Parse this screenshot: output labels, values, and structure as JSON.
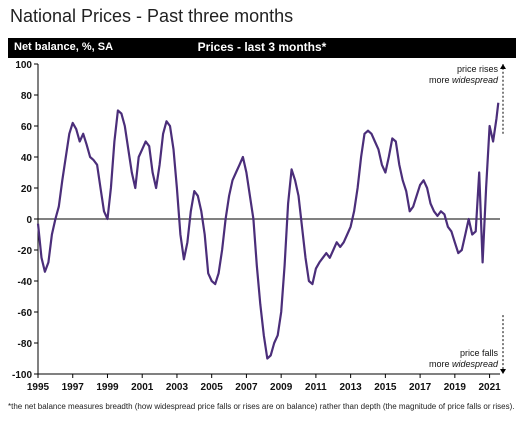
{
  "page": {
    "title": "National Prices - Past three months",
    "footnote": "*the net balance measures breadth (how widespread price falls or rises are on balance)  rather than depth (the magnitude of price falls or rises)."
  },
  "chart_data": {
    "type": "line",
    "title": "Prices - last 3 months*",
    "ylabel": "Net balance, %, SA",
    "ylim": [
      -100,
      100
    ],
    "xlim": [
      1995,
      2021.6
    ],
    "y_ticks": [
      100,
      80,
      60,
      40,
      20,
      0,
      -20,
      -40,
      -60,
      -80,
      -100
    ],
    "x_ticks": [
      1995,
      1997,
      1999,
      2001,
      2003,
      2005,
      2007,
      2009,
      2011,
      2013,
      2015,
      2017,
      2019,
      2021
    ],
    "grid": false,
    "colors": {
      "series": "#4b2e7a",
      "header": "#000000"
    },
    "annotations": {
      "top": [
        "price rises",
        "more widespread"
      ],
      "bottom": [
        "price falls",
        "more widespread"
      ]
    },
    "series": [
      {
        "values": [
          [
            1995.0,
            -3
          ],
          [
            1995.2,
            -25
          ],
          [
            1995.4,
            -34
          ],
          [
            1995.6,
            -28
          ],
          [
            1995.8,
            -10
          ],
          [
            1996.0,
            0
          ],
          [
            1996.2,
            8
          ],
          [
            1996.4,
            25
          ],
          [
            1996.6,
            40
          ],
          [
            1996.8,
            55
          ],
          [
            1997.0,
            62
          ],
          [
            1997.2,
            58
          ],
          [
            1997.4,
            50
          ],
          [
            1997.6,
            55
          ],
          [
            1997.8,
            48
          ],
          [
            1998.0,
            40
          ],
          [
            1998.2,
            38
          ],
          [
            1998.4,
            35
          ],
          [
            1998.6,
            20
          ],
          [
            1998.8,
            5
          ],
          [
            1999.0,
            0
          ],
          [
            1999.2,
            20
          ],
          [
            1999.4,
            50
          ],
          [
            1999.6,
            70
          ],
          [
            1999.8,
            68
          ],
          [
            2000.0,
            60
          ],
          [
            2000.2,
            45
          ],
          [
            2000.4,
            30
          ],
          [
            2000.6,
            20
          ],
          [
            2000.8,
            40
          ],
          [
            2001.0,
            45
          ],
          [
            2001.2,
            50
          ],
          [
            2001.4,
            47
          ],
          [
            2001.6,
            30
          ],
          [
            2001.8,
            20
          ],
          [
            2002.0,
            35
          ],
          [
            2002.2,
            55
          ],
          [
            2002.4,
            63
          ],
          [
            2002.6,
            60
          ],
          [
            2002.8,
            45
          ],
          [
            2003.0,
            20
          ],
          [
            2003.2,
            -10
          ],
          [
            2003.4,
            -26
          ],
          [
            2003.6,
            -15
          ],
          [
            2003.8,
            5
          ],
          [
            2004.0,
            18
          ],
          [
            2004.2,
            15
          ],
          [
            2004.4,
            5
          ],
          [
            2004.6,
            -10
          ],
          [
            2004.8,
            -35
          ],
          [
            2005.0,
            -40
          ],
          [
            2005.2,
            -42
          ],
          [
            2005.4,
            -35
          ],
          [
            2005.6,
            -20
          ],
          [
            2005.8,
            0
          ],
          [
            2006.0,
            15
          ],
          [
            2006.2,
            25
          ],
          [
            2006.4,
            30
          ],
          [
            2006.6,
            35
          ],
          [
            2006.8,
            40
          ],
          [
            2007.0,
            30
          ],
          [
            2007.2,
            15
          ],
          [
            2007.4,
            0
          ],
          [
            2007.6,
            -30
          ],
          [
            2007.8,
            -55
          ],
          [
            2008.0,
            -75
          ],
          [
            2008.2,
            -90
          ],
          [
            2008.4,
            -88
          ],
          [
            2008.6,
            -80
          ],
          [
            2008.8,
            -75
          ],
          [
            2009.0,
            -60
          ],
          [
            2009.2,
            -30
          ],
          [
            2009.4,
            10
          ],
          [
            2009.6,
            32
          ],
          [
            2009.8,
            25
          ],
          [
            2010.0,
            15
          ],
          [
            2010.2,
            -5
          ],
          [
            2010.4,
            -25
          ],
          [
            2010.6,
            -40
          ],
          [
            2010.8,
            -42
          ],
          [
            2011.0,
            -32
          ],
          [
            2011.2,
            -28
          ],
          [
            2011.4,
            -25
          ],
          [
            2011.6,
            -22
          ],
          [
            2011.8,
            -25
          ],
          [
            2012.0,
            -20
          ],
          [
            2012.2,
            -15
          ],
          [
            2012.4,
            -18
          ],
          [
            2012.6,
            -15
          ],
          [
            2012.8,
            -10
          ],
          [
            2013.0,
            -5
          ],
          [
            2013.2,
            5
          ],
          [
            2013.4,
            20
          ],
          [
            2013.6,
            40
          ],
          [
            2013.8,
            55
          ],
          [
            2014.0,
            57
          ],
          [
            2014.2,
            55
          ],
          [
            2014.4,
            50
          ],
          [
            2014.6,
            45
          ],
          [
            2014.8,
            35
          ],
          [
            2015.0,
            30
          ],
          [
            2015.2,
            40
          ],
          [
            2015.4,
            52
          ],
          [
            2015.6,
            50
          ],
          [
            2015.8,
            35
          ],
          [
            2016.0,
            25
          ],
          [
            2016.2,
            18
          ],
          [
            2016.4,
            5
          ],
          [
            2016.6,
            8
          ],
          [
            2016.8,
            15
          ],
          [
            2017.0,
            22
          ],
          [
            2017.2,
            25
          ],
          [
            2017.4,
            20
          ],
          [
            2017.6,
            10
          ],
          [
            2017.8,
            5
          ],
          [
            2018.0,
            2
          ],
          [
            2018.2,
            5
          ],
          [
            2018.4,
            3
          ],
          [
            2018.6,
            -5
          ],
          [
            2018.8,
            -8
          ],
          [
            2019.0,
            -15
          ],
          [
            2019.2,
            -22
          ],
          [
            2019.4,
            -20
          ],
          [
            2019.6,
            -10
          ],
          [
            2019.8,
            0
          ],
          [
            2020.0,
            -10
          ],
          [
            2020.2,
            -8
          ],
          [
            2020.4,
            30
          ],
          [
            2020.6,
            -28
          ],
          [
            2020.8,
            20
          ],
          [
            2021.0,
            60
          ],
          [
            2021.2,
            50
          ],
          [
            2021.4,
            65
          ],
          [
            2021.5,
            75
          ]
        ]
      }
    ]
  }
}
